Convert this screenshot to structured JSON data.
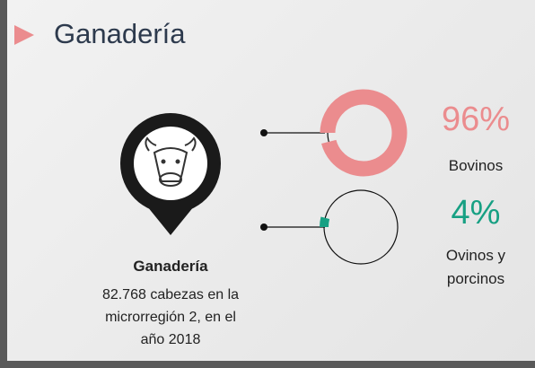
{
  "header": {
    "title": "Ganadería"
  },
  "summary": {
    "title": "Ganadería",
    "lines": [
      "82.768 cabezas en la",
      "microrregión 2, en el",
      "año 2018"
    ]
  },
  "chart_data": [
    {
      "type": "donut",
      "categories": [
        "Bovinos"
      ],
      "values": [
        96
      ],
      "value_labels": [
        "96%"
      ],
      "color": "#eb8c8e"
    },
    {
      "type": "donut",
      "categories": [
        "Ovinos y porcinos"
      ],
      "values": [
        4
      ],
      "value_labels": [
        "4%"
      ],
      "color": "#17a083"
    }
  ]
}
